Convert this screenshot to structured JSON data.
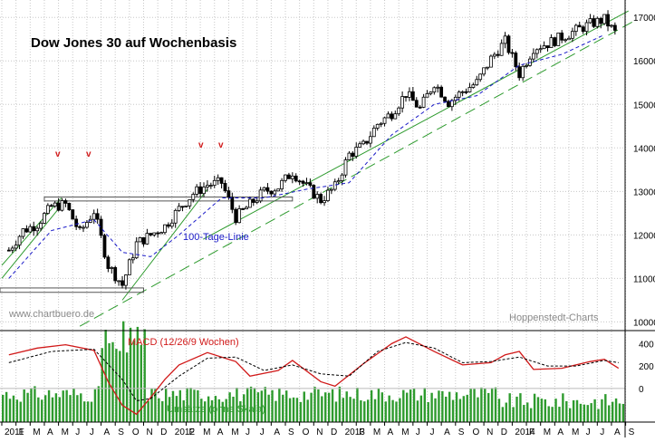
{
  "chart_data": [
    {
      "type": "candlestick",
      "title": "Dow Jones 30 auf Wochenbasis",
      "ylim": [
        9800,
        17400
      ],
      "y_ticks": [
        10000,
        11000,
        12000,
        13000,
        14000,
        15000,
        16000,
        17000
      ],
      "y_tick_labels": [
        "10000",
        "11000",
        "12000",
        "13000",
        "14000",
        "15000",
        "16000",
        "17000"
      ],
      "x_labels": [
        "2011",
        "F",
        "M",
        "A",
        "M",
        "J",
        "J",
        "A",
        "S",
        "O",
        "N",
        "D",
        "2012",
        "F",
        "M",
        "A",
        "M",
        "J",
        "J",
        "A",
        "S",
        "O",
        "N",
        "D",
        "2013",
        "F",
        "M",
        "A",
        "M",
        "J",
        "J",
        "A",
        "S",
        "O",
        "N",
        "D",
        "2014",
        "F",
        "M",
        "A",
        "M",
        "J",
        "J",
        "A",
        "S"
      ],
      "series": [
        {
          "name": "Dow Jones 30",
          "weekly_close": [
            {
              "x": "2011-01",
              "y": 11650
            },
            {
              "x": "2011-02",
              "y": 12100
            },
            {
              "x": "2011-03",
              "y": 12250
            },
            {
              "x": "2011-04",
              "y": 12650
            },
            {
              "x": "2011-05",
              "y": 12700
            },
            {
              "x": "2011-06",
              "y": 12050
            },
            {
              "x": "2011-07",
              "y": 12550
            },
            {
              "x": "2011-08",
              "y": 11300
            },
            {
              "x": "2011-09",
              "y": 10850
            },
            {
              "x": "2011-10",
              "y": 11800
            },
            {
              "x": "2011-11",
              "y": 12000
            },
            {
              "x": "2011-12",
              "y": 12200
            },
            {
              "x": "2012-01",
              "y": 12600
            },
            {
              "x": "2012-02",
              "y": 12950
            },
            {
              "x": "2012-03",
              "y": 13150
            },
            {
              "x": "2012-04",
              "y": 13200
            },
            {
              "x": "2012-05",
              "y": 12400
            },
            {
              "x": "2012-06",
              "y": 12700
            },
            {
              "x": "2012-07",
              "y": 13000
            },
            {
              "x": "2012-08",
              "y": 13100
            },
            {
              "x": "2012-09",
              "y": 13450
            },
            {
              "x": "2012-10",
              "y": 13100
            },
            {
              "x": "2012-11",
              "y": 12800
            },
            {
              "x": "2012-12",
              "y": 13100
            },
            {
              "x": "2013-01",
              "y": 13850
            },
            {
              "x": "2013-02",
              "y": 14050
            },
            {
              "x": "2013-03",
              "y": 14550
            },
            {
              "x": "2013-04",
              "y": 14800
            },
            {
              "x": "2013-05",
              "y": 15250
            },
            {
              "x": "2013-06",
              "y": 14900
            },
            {
              "x": "2013-07",
              "y": 15500
            },
            {
              "x": "2013-08",
              "y": 15050
            },
            {
              "x": "2013-09",
              "y": 15300
            },
            {
              "x": "2013-10",
              "y": 15500
            },
            {
              "x": "2013-11",
              "y": 16050
            },
            {
              "x": "2013-12",
              "y": 16450
            },
            {
              "x": "2014-01",
              "y": 15700
            },
            {
              "x": "2014-02",
              "y": 16300
            },
            {
              "x": "2014-03",
              "y": 16400
            },
            {
              "x": "2014-04",
              "y": 16550
            },
            {
              "x": "2014-05",
              "y": 16700
            },
            {
              "x": "2014-06",
              "y": 16850
            },
            {
              "x": "2014-07",
              "y": 16950
            },
            {
              "x": "2014-08",
              "y": 16550
            }
          ]
        },
        {
          "name": "100-Tage-Linie",
          "values": [
            {
              "x": "2011-01",
              "y": 11000
            },
            {
              "x": "2011-04",
              "y": 12100
            },
            {
              "x": "2011-07",
              "y": 12350
            },
            {
              "x": "2011-09",
              "y": 11600
            },
            {
              "x": "2011-11",
              "y": 11500
            },
            {
              "x": "2012-01",
              "y": 12000
            },
            {
              "x": "2012-04",
              "y": 12850
            },
            {
              "x": "2012-07",
              "y": 12850
            },
            {
              "x": "2012-10",
              "y": 13050
            },
            {
              "x": "2013-01",
              "y": 13200
            },
            {
              "x": "2013-04",
              "y": 14300
            },
            {
              "x": "2013-07",
              "y": 15000
            },
            {
              "x": "2013-10",
              "y": 15200
            },
            {
              "x": "2014-01",
              "y": 15900
            },
            {
              "x": "2014-04",
              "y": 16150
            },
            {
              "x": "2014-07",
              "y": 16600
            }
          ]
        }
      ],
      "annotations": [
        "100-Tage-Linie",
        "www.chartbuero.de",
        "Hoppenstedt-Charts"
      ],
      "markers": [
        "v",
        "v",
        "v",
        "v"
      ],
      "colors": {
        "trendlines": "#2e9b2e",
        "sma": "#1a1ac8",
        "marker": "#d11a1a",
        "candles": "#000000"
      }
    },
    {
      "type": "line",
      "title": "MACD (12/26/9 Wochen)",
      "ylim": [
        -300,
        500
      ],
      "y_ticks": [
        0,
        200,
        400
      ],
      "y_tick_labels": [
        "0",
        "200",
        "400"
      ],
      "series": [
        {
          "name": "MACD (12/26/9 Wochen)",
          "values": [
            {
              "x": "2011-01",
              "y": 300
            },
            {
              "x": "2011-03",
              "y": 360
            },
            {
              "x": "2011-05",
              "y": 390
            },
            {
              "x": "2011-07",
              "y": 340
            },
            {
              "x": "2011-08",
              "y": 60
            },
            {
              "x": "2011-09",
              "y": -150
            },
            {
              "x": "2011-10",
              "y": -230
            },
            {
              "x": "2011-11",
              "y": -80
            },
            {
              "x": "2011-12",
              "y": 80
            },
            {
              "x": "2012-01",
              "y": 210
            },
            {
              "x": "2012-03",
              "y": 320
            },
            {
              "x": "2012-05",
              "y": 240
            },
            {
              "x": "2012-06",
              "y": 110
            },
            {
              "x": "2012-08",
              "y": 160
            },
            {
              "x": "2012-09",
              "y": 250
            },
            {
              "x": "2012-11",
              "y": 60
            },
            {
              "x": "2012-12",
              "y": 20
            },
            {
              "x": "2013-02",
              "y": 220
            },
            {
              "x": "2013-04",
              "y": 400
            },
            {
              "x": "2013-05",
              "y": 460
            },
            {
              "x": "2013-07",
              "y": 330
            },
            {
              "x": "2013-09",
              "y": 210
            },
            {
              "x": "2013-11",
              "y": 230
            },
            {
              "x": "2013-12",
              "y": 300
            },
            {
              "x": "2014-01",
              "y": 330
            },
            {
              "x": "2014-02",
              "y": 170
            },
            {
              "x": "2014-04",
              "y": 180
            },
            {
              "x": "2014-06",
              "y": 240
            },
            {
              "x": "2014-07",
              "y": 260
            },
            {
              "x": "2014-08",
              "y": 180
            }
          ]
        },
        {
          "values": [
            {
              "x": "2011-01",
              "y": 230
            },
            {
              "x": "2011-04",
              "y": 330
            },
            {
              "x": "2011-07",
              "y": 350
            },
            {
              "x": "2011-09",
              "y": 80
            },
            {
              "x": "2011-10",
              "y": -110
            },
            {
              "x": "2011-11",
              "y": -90
            },
            {
              "x": "2012-01",
              "y": 110
            },
            {
              "x": "2012-03",
              "y": 270
            },
            {
              "x": "2012-05",
              "y": 280
            },
            {
              "x": "2012-07",
              "y": 160
            },
            {
              "x": "2012-09",
              "y": 210
            },
            {
              "x": "2012-11",
              "y": 130
            },
            {
              "x": "2013-01",
              "y": 110
            },
            {
              "x": "2013-03",
              "y": 330
            },
            {
              "x": "2013-05",
              "y": 410
            },
            {
              "x": "2013-07",
              "y": 360
            },
            {
              "x": "2013-09",
              "y": 230
            },
            {
              "x": "2013-11",
              "y": 240
            },
            {
              "x": "2014-01",
              "y": 280
            },
            {
              "x": "2014-03",
              "y": 200
            },
            {
              "x": "2014-05",
              "y": 200
            },
            {
              "x": "2014-07",
              "y": 250
            },
            {
              "x": "2014-08",
              "y": 230
            }
          ]
        }
      ]
    },
    {
      "type": "bar",
      "title": "Umsätze (ohne Skala)",
      "note": "no scale shown"
    }
  ]
}
